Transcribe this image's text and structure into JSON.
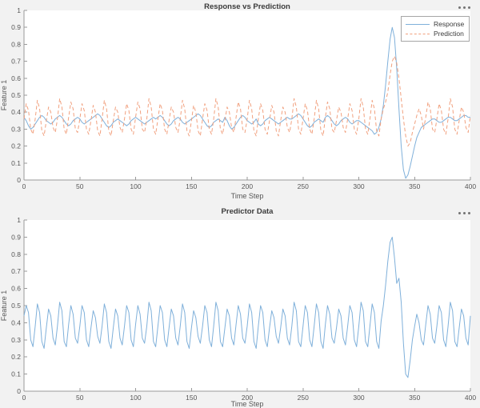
{
  "colors": {
    "figure_background": "#f2f2f2",
    "plot_background": "#ffffff",
    "axis_line": "#9a9a9a",
    "tick_label": "#575757",
    "title_text": "#3a3a3a",
    "response_blue": "#7fb0da",
    "prediction_orange": "#f1a07e",
    "legend_border": "#a6a6a6",
    "dots_gray": "#737373"
  },
  "icons": {
    "more_options_icon": "three-dots"
  },
  "chart_data": [
    {
      "type": "line",
      "title": "Response vs Prediction",
      "xlabel": "Time Step",
      "ylabel": "Feature 1",
      "xlim": [
        0,
        400
      ],
      "ylim": [
        0,
        1
      ],
      "grid": false,
      "xticks": [
        0,
        50,
        100,
        150,
        200,
        250,
        300,
        350,
        400
      ],
      "xtick_labels": [
        "0",
        "50",
        "100",
        "150",
        "200",
        "250",
        "300",
        "350",
        "400"
      ],
      "yticks": [
        0,
        0.1,
        0.2,
        0.3,
        0.4,
        0.5,
        0.6,
        0.7,
        0.8,
        0.9,
        1
      ],
      "ytick_labels": [
        "0",
        "0.1",
        "0.2",
        "0.3",
        "0.4",
        "0.5",
        "0.6",
        "0.7",
        "0.8",
        "0.9",
        "1"
      ],
      "legend": {
        "position": "northeast",
        "entries": [
          {
            "label": "Response",
            "color": "#7fb0da",
            "style": "solid"
          },
          {
            "label": "Prediction",
            "color": "#f1a07e",
            "style": "dashed"
          }
        ]
      },
      "x_start": 0,
      "x_step": 2,
      "series": [
        {
          "name": "Response",
          "color": "#7fb0da",
          "style": "solid",
          "values": [
            0.37,
            0.35,
            0.32,
            0.3,
            0.31,
            0.33,
            0.35,
            0.37,
            0.38,
            0.37,
            0.35,
            0.34,
            0.33,
            0.34,
            0.36,
            0.37,
            0.38,
            0.37,
            0.35,
            0.33,
            0.32,
            0.33,
            0.35,
            0.36,
            0.37,
            0.36,
            0.34,
            0.33,
            0.34,
            0.35,
            0.36,
            0.37,
            0.38,
            0.39,
            0.38,
            0.36,
            0.34,
            0.32,
            0.31,
            0.32,
            0.34,
            0.35,
            0.36,
            0.35,
            0.34,
            0.33,
            0.32,
            0.33,
            0.35,
            0.36,
            0.37,
            0.36,
            0.35,
            0.34,
            0.33,
            0.34,
            0.35,
            0.36,
            0.37,
            0.36,
            0.37,
            0.38,
            0.37,
            0.35,
            0.33,
            0.32,
            0.33,
            0.35,
            0.36,
            0.37,
            0.36,
            0.34,
            0.33,
            0.34,
            0.35,
            0.36,
            0.37,
            0.38,
            0.39,
            0.38,
            0.36,
            0.34,
            0.32,
            0.31,
            0.32,
            0.34,
            0.35,
            0.36,
            0.35,
            0.34,
            0.37,
            0.35,
            0.32,
            0.3,
            0.31,
            0.33,
            0.35,
            0.37,
            0.38,
            0.37,
            0.35,
            0.34,
            0.33,
            0.34,
            0.36,
            0.33,
            0.32,
            0.33,
            0.35,
            0.36,
            0.37,
            0.36,
            0.35,
            0.34,
            0.33,
            0.34,
            0.35,
            0.36,
            0.37,
            0.36,
            0.36,
            0.37,
            0.38,
            0.39,
            0.38,
            0.36,
            0.34,
            0.32,
            0.31,
            0.32,
            0.34,
            0.35,
            0.36,
            0.35,
            0.34,
            0.37,
            0.38,
            0.37,
            0.35,
            0.33,
            0.32,
            0.33,
            0.35,
            0.36,
            0.37,
            0.36,
            0.34,
            0.33,
            0.34,
            0.35,
            0.35,
            0.34,
            0.33,
            0.32,
            0.31,
            0.3,
            0.29,
            0.27,
            0.28,
            0.31,
            0.36,
            0.44,
            0.56,
            0.7,
            0.83,
            0.9,
            0.84,
            0.66,
            0.42,
            0.2,
            0.06,
            0.01,
            0.03,
            0.08,
            0.14,
            0.2,
            0.25,
            0.28,
            0.31,
            0.32,
            0.33,
            0.34,
            0.35,
            0.36,
            0.36,
            0.35,
            0.34,
            0.34,
            0.35,
            0.36,
            0.37,
            0.37,
            0.36,
            0.35,
            0.35,
            0.36,
            0.37,
            0.38,
            0.38,
            0.37,
            0.37
          ]
        },
        {
          "name": "Prediction",
          "color": "#f1a07e",
          "style": "dashed",
          "values": [
            0.36,
            0.45,
            0.41,
            0.3,
            0.27,
            0.36,
            0.47,
            0.42,
            0.29,
            0.26,
            0.35,
            0.43,
            0.4,
            0.31,
            0.28,
            0.36,
            0.48,
            0.43,
            0.3,
            0.27,
            0.37,
            0.46,
            0.42,
            0.3,
            0.28,
            0.36,
            0.45,
            0.41,
            0.3,
            0.27,
            0.35,
            0.44,
            0.4,
            0.29,
            0.26,
            0.36,
            0.47,
            0.42,
            0.29,
            0.26,
            0.35,
            0.43,
            0.4,
            0.31,
            0.28,
            0.36,
            0.45,
            0.41,
            0.3,
            0.27,
            0.37,
            0.46,
            0.42,
            0.3,
            0.28,
            0.36,
            0.48,
            0.43,
            0.3,
            0.27,
            0.36,
            0.45,
            0.41,
            0.3,
            0.27,
            0.35,
            0.43,
            0.4,
            0.31,
            0.28,
            0.36,
            0.47,
            0.42,
            0.29,
            0.26,
            0.35,
            0.44,
            0.4,
            0.29,
            0.26,
            0.36,
            0.45,
            0.41,
            0.3,
            0.27,
            0.36,
            0.48,
            0.43,
            0.3,
            0.27,
            0.35,
            0.43,
            0.4,
            0.31,
            0.28,
            0.37,
            0.46,
            0.42,
            0.3,
            0.28,
            0.36,
            0.47,
            0.42,
            0.29,
            0.26,
            0.36,
            0.45,
            0.41,
            0.3,
            0.27,
            0.35,
            0.44,
            0.4,
            0.29,
            0.26,
            0.35,
            0.43,
            0.4,
            0.31,
            0.28,
            0.36,
            0.48,
            0.43,
            0.3,
            0.27,
            0.36,
            0.45,
            0.41,
            0.3,
            0.27,
            0.36,
            0.47,
            0.42,
            0.29,
            0.26,
            0.37,
            0.46,
            0.42,
            0.3,
            0.28,
            0.35,
            0.43,
            0.4,
            0.31,
            0.28,
            0.36,
            0.45,
            0.41,
            0.3,
            0.27,
            0.36,
            0.48,
            0.43,
            0.3,
            0.27,
            0.36,
            0.47,
            0.42,
            0.29,
            0.26,
            0.36,
            0.42,
            0.46,
            0.52,
            0.62,
            0.7,
            0.73,
            0.69,
            0.6,
            0.48,
            0.36,
            0.26,
            0.2,
            0.22,
            0.28,
            0.33,
            0.38,
            0.42,
            0.38,
            0.3,
            0.37,
            0.46,
            0.42,
            0.3,
            0.28,
            0.36,
            0.45,
            0.41,
            0.3,
            0.27,
            0.36,
            0.48,
            0.43,
            0.3,
            0.27,
            0.35,
            0.43,
            0.4,
            0.31,
            0.28,
            0.38
          ]
        }
      ]
    },
    {
      "type": "line",
      "title": "Predictor Data",
      "xlabel": "Time Step",
      "ylabel": "Feature 1",
      "xlim": [
        0,
        400
      ],
      "ylim": [
        0,
        1
      ],
      "grid": false,
      "xticks": [
        0,
        50,
        100,
        150,
        200,
        250,
        300,
        350,
        400
      ],
      "xtick_labels": [
        "0",
        "50",
        "100",
        "150",
        "200",
        "250",
        "300",
        "350",
        "400"
      ],
      "yticks": [
        0,
        0.1,
        0.2,
        0.3,
        0.4,
        0.5,
        0.6,
        0.7,
        0.8,
        0.9,
        1
      ],
      "ytick_labels": [
        "0",
        "0.1",
        "0.2",
        "0.3",
        "0.4",
        "0.5",
        "0.6",
        "0.7",
        "0.8",
        "0.9",
        "1"
      ],
      "legend": null,
      "x_start": 0,
      "x_step": 2,
      "series": [
        {
          "name": "Predictor",
          "color": "#7fb0da",
          "style": "solid",
          "values": [
            0.44,
            0.5,
            0.46,
            0.3,
            0.26,
            0.38,
            0.51,
            0.46,
            0.29,
            0.25,
            0.37,
            0.48,
            0.44,
            0.31,
            0.27,
            0.38,
            0.52,
            0.47,
            0.29,
            0.26,
            0.39,
            0.5,
            0.45,
            0.31,
            0.28,
            0.38,
            0.5,
            0.46,
            0.3,
            0.26,
            0.37,
            0.47,
            0.43,
            0.32,
            0.28,
            0.38,
            0.51,
            0.46,
            0.29,
            0.25,
            0.37,
            0.48,
            0.44,
            0.31,
            0.27,
            0.38,
            0.5,
            0.46,
            0.3,
            0.26,
            0.39,
            0.5,
            0.45,
            0.31,
            0.28,
            0.38,
            0.52,
            0.47,
            0.29,
            0.26,
            0.38,
            0.5,
            0.46,
            0.3,
            0.26,
            0.37,
            0.48,
            0.44,
            0.31,
            0.27,
            0.38,
            0.51,
            0.46,
            0.29,
            0.25,
            0.37,
            0.47,
            0.43,
            0.32,
            0.28,
            0.38,
            0.5,
            0.46,
            0.3,
            0.26,
            0.38,
            0.52,
            0.47,
            0.29,
            0.26,
            0.37,
            0.48,
            0.44,
            0.31,
            0.27,
            0.39,
            0.5,
            0.45,
            0.31,
            0.28,
            0.38,
            0.51,
            0.46,
            0.29,
            0.25,
            0.38,
            0.5,
            0.46,
            0.3,
            0.26,
            0.37,
            0.47,
            0.43,
            0.32,
            0.28,
            0.37,
            0.48,
            0.44,
            0.31,
            0.27,
            0.38,
            0.52,
            0.47,
            0.29,
            0.26,
            0.38,
            0.5,
            0.46,
            0.3,
            0.26,
            0.38,
            0.51,
            0.46,
            0.29,
            0.25,
            0.39,
            0.5,
            0.45,
            0.31,
            0.28,
            0.37,
            0.48,
            0.44,
            0.31,
            0.27,
            0.38,
            0.5,
            0.46,
            0.3,
            0.26,
            0.38,
            0.52,
            0.47,
            0.29,
            0.26,
            0.38,
            0.51,
            0.46,
            0.29,
            0.25,
            0.41,
            0.5,
            0.62,
            0.76,
            0.87,
            0.9,
            0.78,
            0.63,
            0.66,
            0.52,
            0.28,
            0.1,
            0.08,
            0.18,
            0.3,
            0.38,
            0.45,
            0.4,
            0.3,
            0.27,
            0.39,
            0.5,
            0.45,
            0.31,
            0.28,
            0.38,
            0.5,
            0.46,
            0.3,
            0.26,
            0.38,
            0.52,
            0.47,
            0.29,
            0.26,
            0.37,
            0.48,
            0.44,
            0.31,
            0.27,
            0.44
          ]
        }
      ]
    }
  ]
}
